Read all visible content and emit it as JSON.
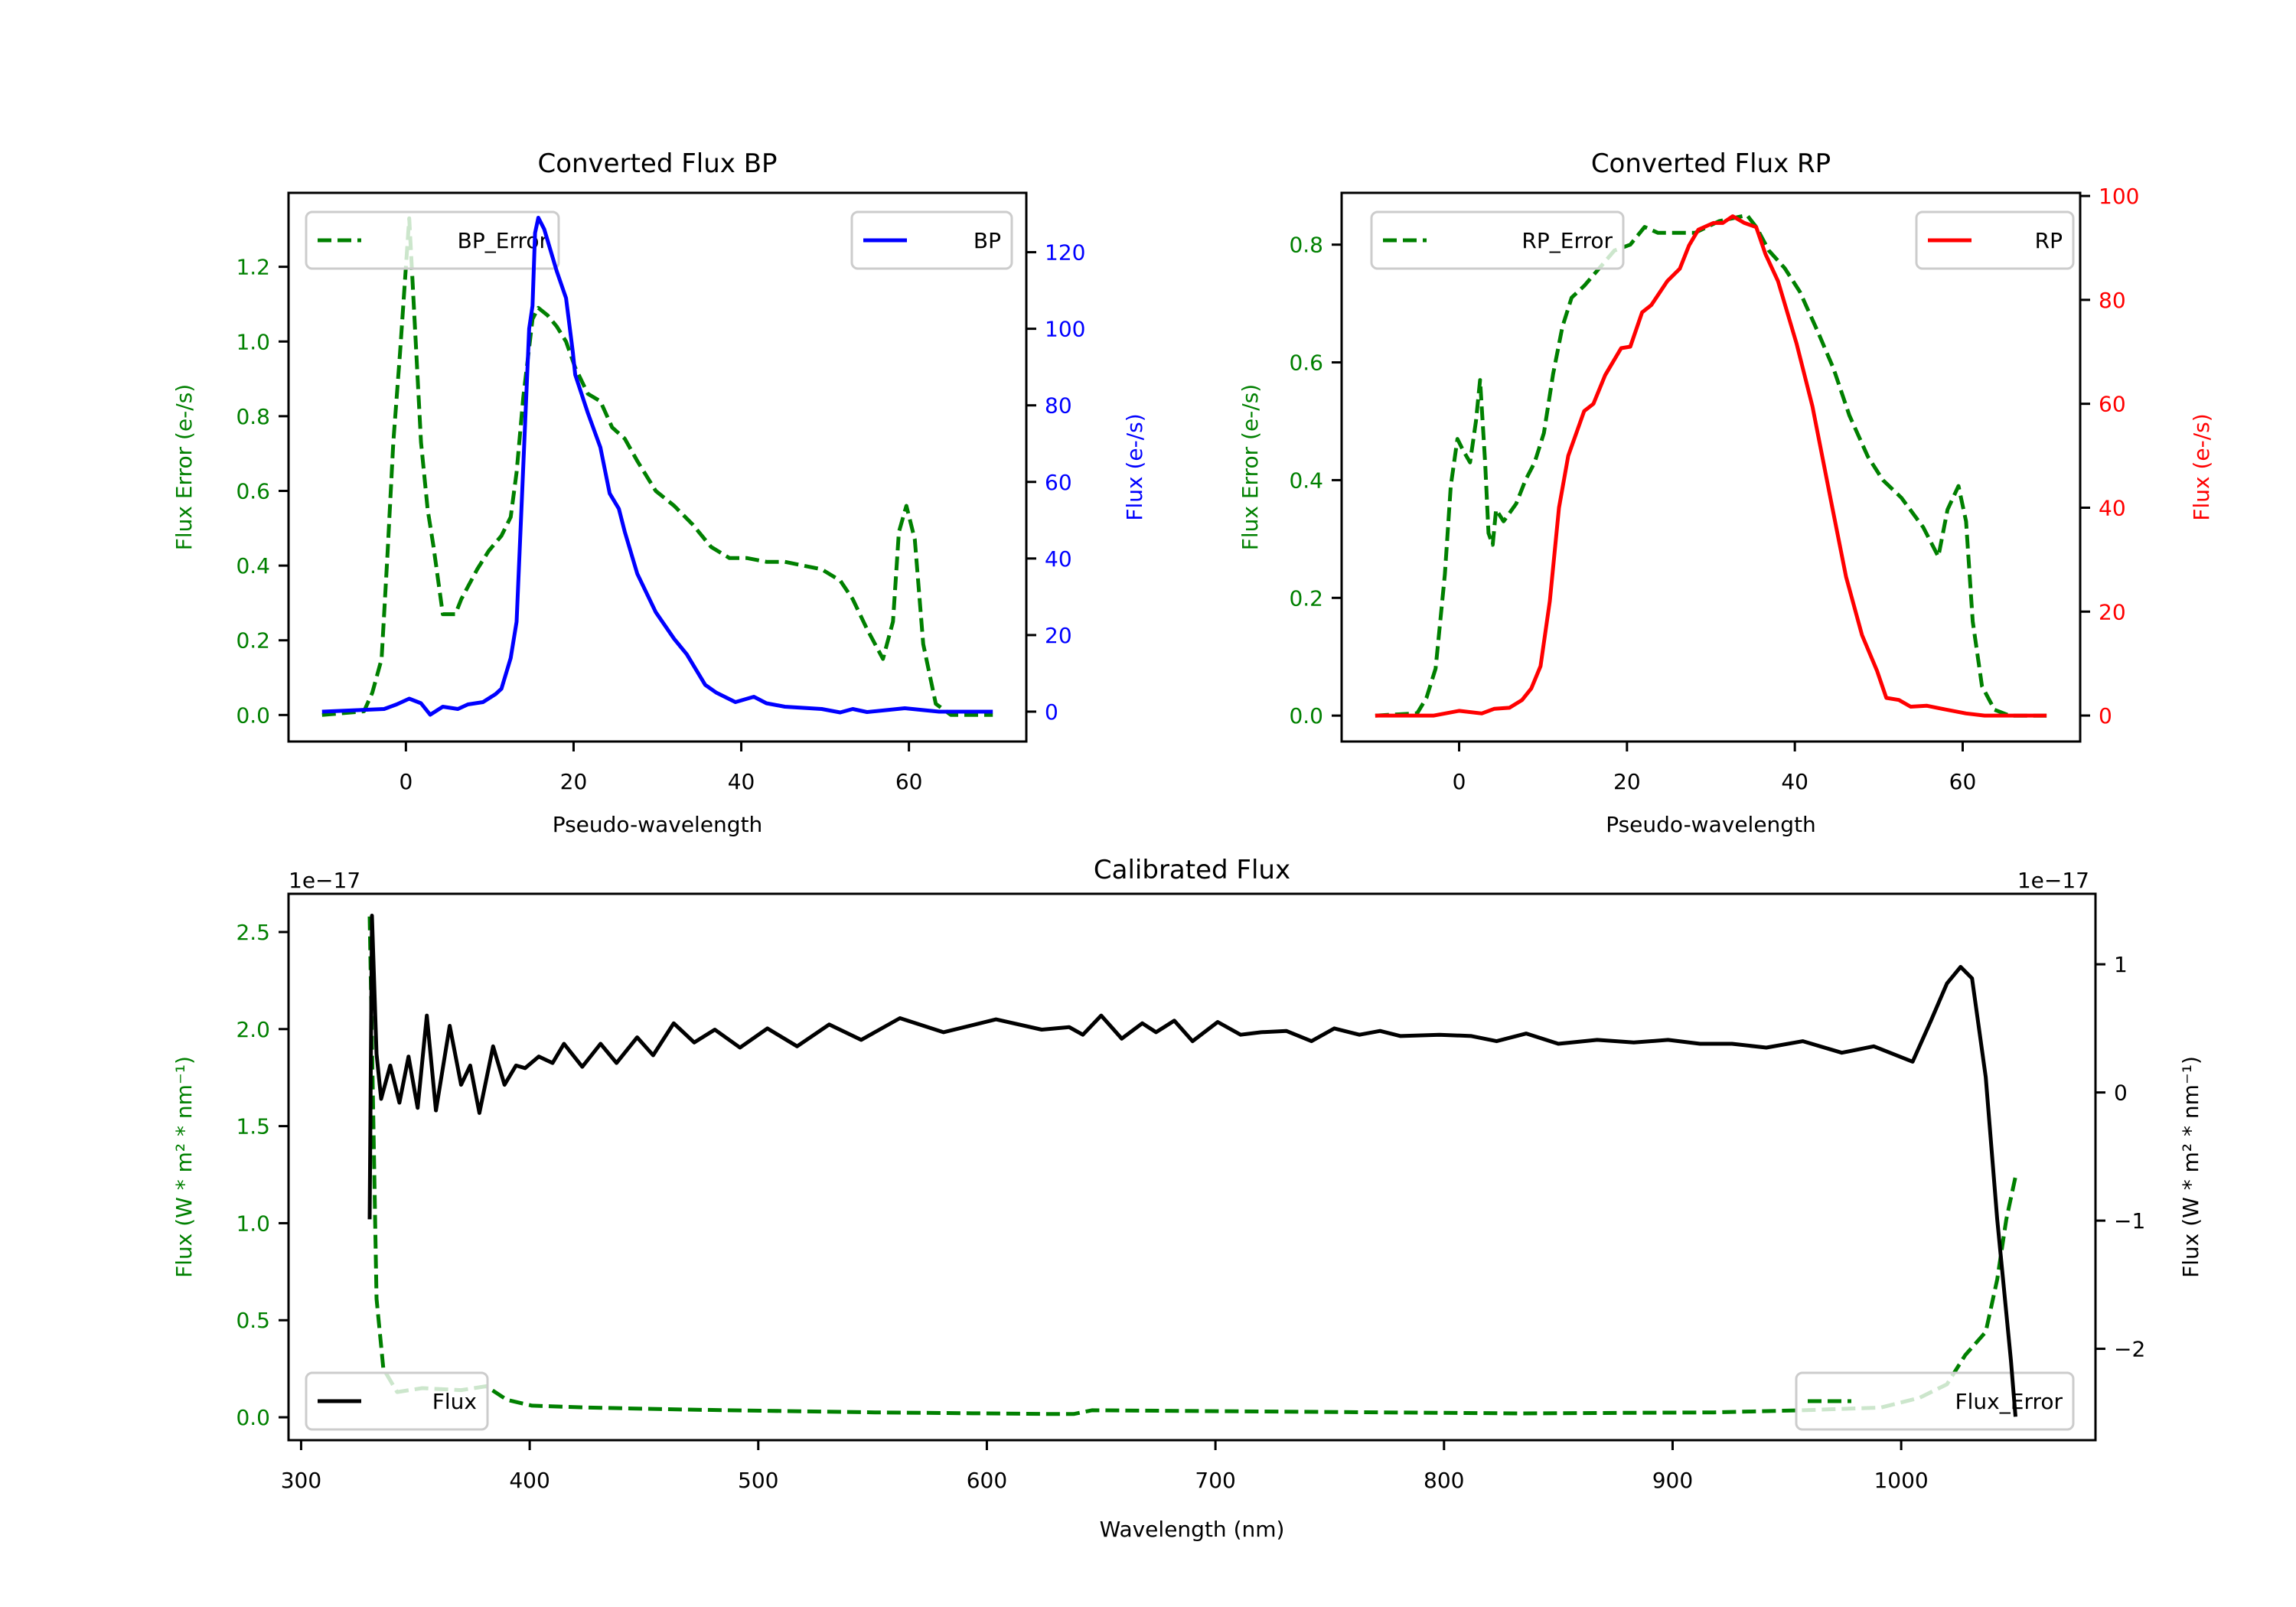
{
  "chart_data": [
    {
      "id": "bp",
      "type": "line",
      "title": "Converted Flux BP",
      "xlabel": "Pseudo-wavelength",
      "ylabel_left": "Flux Error (e-/s)",
      "ylabel_right": "Flux (e-/s)",
      "left_color": "#008000",
      "right_color": "#0000ff",
      "xlim": [
        -14,
        74
      ],
      "ylim_left": [
        -0.071,
        1.398
      ],
      "ylim_right": [
        -7.8,
        135.5
      ],
      "xticks": [
        0,
        20,
        40,
        60
      ],
      "xtick_labels": [
        "0",
        "20",
        "40",
        "60"
      ],
      "yticks_left": [
        0,
        0.2,
        0.4,
        0.6,
        0.8,
        1.0,
        1.2
      ],
      "ytick_labels_left": [
        "0.0",
        "0.2",
        "0.4",
        "0.6",
        "0.8",
        "1.0",
        "1.2"
      ],
      "yticks_right": [
        0,
        20,
        40,
        60,
        80,
        100,
        120
      ],
      "ytick_labels_right": [
        "0",
        "20",
        "40",
        "60",
        "80",
        "100",
        "120"
      ],
      "legend_left": {
        "label": "BP_Error",
        "placement": "upper-left"
      },
      "legend_right": {
        "label": "BP",
        "placement": "upper-right"
      },
      "series_left": {
        "name": "BP_Error",
        "style": "dashed",
        "color": "#008000",
        "x": [
          -10,
          -5,
          -4,
          -2.9,
          -2.2,
          -1.5,
          -0.7,
          0.4,
          1.1,
          1.8,
          2.6,
          3.3,
          4.4,
          5.9,
          6.6,
          8.5,
          9.9,
          11.4,
          12.5,
          13.2,
          14,
          15.1,
          15.8,
          16.9,
          18,
          19.1,
          20.2,
          21.7,
          23.2,
          24.6,
          26.1,
          27.6,
          29.8,
          32,
          34.2,
          36.4,
          38.6,
          40.7,
          43,
          45.2,
          47.4,
          49.6,
          51.8,
          53.3,
          55,
          56.9,
          58.1,
          58.8,
          59.7,
          60.7,
          61.7,
          63.2,
          65,
          70
        ],
        "y": [
          0,
          0.01,
          0.06,
          0.15,
          0.43,
          0.73,
          0.97,
          1.33,
          1.03,
          0.73,
          0.55,
          0.45,
          0.27,
          0.27,
          0.31,
          0.39,
          0.44,
          0.48,
          0.53,
          0.65,
          0.85,
          1.06,
          1.09,
          1.07,
          1.04,
          1.0,
          0.93,
          0.86,
          0.84,
          0.77,
          0.74,
          0.68,
          0.6,
          0.56,
          0.51,
          0.45,
          0.42,
          0.42,
          0.41,
          0.41,
          0.4,
          0.39,
          0.36,
          0.31,
          0.23,
          0.15,
          0.25,
          0.49,
          0.56,
          0.47,
          0.19,
          0.03,
          0,
          0
        ]
      },
      "series_right": {
        "name": "BP",
        "style": "solid",
        "color": "#0000ff",
        "x": [
          -10,
          -2.6,
          -1.1,
          0.4,
          1.8,
          2.9,
          4.4,
          6.2,
          7.4,
          9.2,
          10.7,
          11.4,
          12.5,
          13.2,
          14,
          14.7,
          15.1,
          15.4,
          15.8,
          16.5,
          18,
          19.1,
          19.9,
          20.2,
          21.7,
          23.2,
          24.3,
          25.4,
          26.1,
          27.6,
          29.8,
          32,
          33.5,
          35.7,
          37,
          39.3,
          41.5,
          43,
          45.2,
          49.6,
          51.8,
          53.3,
          55,
          59.5,
          63.6,
          70
        ],
        "y": [
          0,
          0.7,
          1.9,
          3.4,
          2.2,
          -0.8,
          1.3,
          0.7,
          1.9,
          2.5,
          4.6,
          6,
          14,
          23.5,
          64,
          100,
          106,
          125,
          129,
          126,
          115,
          108,
          94,
          88,
          78,
          69,
          57,
          53,
          47,
          36,
          26,
          19,
          15,
          7,
          5,
          2.5,
          3.9,
          2.2,
          1.3,
          0.7,
          -0.2,
          0.7,
          -0.1,
          0.9,
          0,
          0
        ]
      }
    },
    {
      "id": "rp",
      "type": "line",
      "title": "Converted Flux RP",
      "xlabel": "Pseudo-wavelength",
      "ylabel_left": "Flux Error (e-/s)",
      "ylabel_right": "Flux (e-/s)",
      "left_color": "#008000",
      "right_color": "#ff0000",
      "xlim": [
        -14,
        74
      ],
      "ylim_left": [
        -0.044,
        0.888
      ],
      "ylim_right": [
        -5.0,
        100.6
      ],
      "xticks": [
        0,
        20,
        40,
        60
      ],
      "xtick_labels": [
        "0",
        "20",
        "40",
        "60"
      ],
      "yticks_left": [
        0,
        0.2,
        0.4,
        0.6,
        0.8
      ],
      "ytick_labels_left": [
        "0.0",
        "0.2",
        "0.4",
        "0.6",
        "0.8"
      ],
      "yticks_right": [
        0,
        20,
        40,
        60,
        80,
        100
      ],
      "ytick_labels_right": [
        "0",
        "20",
        "40",
        "60",
        "80",
        "100"
      ],
      "legend_left": {
        "label": "RP_Error",
        "placement": "upper-left"
      },
      "legend_right": {
        "label": "RP",
        "placement": "upper-right"
      },
      "series_left": {
        "name": "RP_Error",
        "style": "dashed",
        "color": "#008000",
        "x": [
          -10,
          -5,
          -3.9,
          -2.8,
          -1.7,
          -1,
          -0.2,
          0.5,
          1.3,
          2,
          2.5,
          3.1,
          3.5,
          4,
          4.4,
          5.3,
          6.8,
          7.9,
          9,
          10.1,
          11.2,
          12.3,
          13.4,
          14.9,
          16.7,
          18.5,
          20.4,
          22.1,
          23.7,
          24.8,
          26.6,
          28.1,
          31,
          34.3,
          35.4,
          36.9,
          38.8,
          40.6,
          42.8,
          44.6,
          46.5,
          48.7,
          50.5,
          52.7,
          55.3,
          57.1,
          58.2,
          59.5,
          60.4,
          61.2,
          62.3,
          63.8,
          65.6,
          70
        ],
        "y": [
          0,
          0.004,
          0.03,
          0.08,
          0.24,
          0.39,
          0.47,
          0.45,
          0.43,
          0.5,
          0.57,
          0.43,
          0.31,
          0.29,
          0.35,
          0.33,
          0.36,
          0.4,
          0.43,
          0.48,
          0.58,
          0.66,
          0.71,
          0.73,
          0.76,
          0.79,
          0.8,
          0.83,
          0.82,
          0.82,
          0.82,
          0.82,
          0.84,
          0.85,
          0.83,
          0.79,
          0.76,
          0.72,
          0.65,
          0.59,
          0.51,
          0.44,
          0.4,
          0.37,
          0.32,
          0.27,
          0.35,
          0.39,
          0.33,
          0.16,
          0.05,
          0.01,
          0,
          0
        ]
      },
      "series_right": {
        "name": "RP",
        "style": "solid",
        "color": "#ff0000",
        "x": [
          -10,
          -3,
          0,
          2.7,
          4.2,
          6,
          7.5,
          8.6,
          9.7,
          10.8,
          11.9,
          13,
          14.9,
          16,
          17.4,
          19.3,
          20.4,
          21.8,
          22.9,
          24.8,
          26.3,
          27.4,
          28.5,
          30.3,
          31.4,
          32.6,
          34,
          35.4,
          36.5,
          38,
          40.2,
          42.1,
          44.3,
          46.1,
          48,
          49.8,
          50.9,
          52.4,
          53.8,
          55.7,
          57.5,
          60.4,
          62.6,
          70
        ],
        "y": [
          0,
          0,
          0.9,
          0.4,
          1.3,
          1.5,
          3,
          5.2,
          9.5,
          22,
          40,
          50,
          58.6,
          60,
          65.5,
          70.7,
          71,
          77.6,
          79,
          83.6,
          86,
          90.5,
          93.5,
          94.8,
          94.8,
          96.1,
          94.8,
          94,
          88.8,
          83.6,
          71.6,
          59.5,
          41.4,
          26.7,
          15.5,
          8.6,
          3.4,
          3,
          1.7,
          1.9,
          1.3,
          0.4,
          0,
          0
        ]
      }
    },
    {
      "id": "cal",
      "type": "line",
      "title": "Calibrated Flux",
      "xlabel": "Wavelength (nm)",
      "ylabel_left": "Flux (W * m² * nm⁻¹)",
      "ylabel_right": "Flux (W * m² * nm⁻¹)",
      "left_color": "#008000",
      "right_color": "#000000",
      "offset_left": "1e−17",
      "offset_right": "1e−17",
      "xlim": [
        294.5,
        1085
      ],
      "ylim_left": [
        -0.118,
        2.697
      ],
      "ylim_right": [
        -2.713,
        1.55
      ],
      "xticks": [
        300,
        400,
        500,
        600,
        700,
        800,
        900,
        1000
      ],
      "xtick_labels": [
        "300",
        "400",
        "500",
        "600",
        "700",
        "800",
        "900",
        "1000"
      ],
      "yticks_left": [
        0,
        0.5,
        1.0,
        1.5,
        2.0,
        2.5
      ],
      "ytick_labels_left": [
        "0.0",
        "0.5",
        "1.0",
        "1.5",
        "2.0",
        "2.5"
      ],
      "yticks_right": [
        -2,
        -1,
        0,
        1
      ],
      "ytick_labels_right": [
        "−2",
        "−1",
        "0",
        "1"
      ],
      "legend_left": {
        "label": "Flux_Error",
        "placement": "lower-right"
      },
      "legend_right": {
        "label": "Flux",
        "placement": "lower-left"
      },
      "series_left": {
        "name": "Flux_Error",
        "style": "dashed",
        "color": "#008000",
        "x": [
          330,
          332,
          333,
          336,
          342,
          353,
          370,
          381,
          390,
          401,
          426,
          466,
          551,
          630,
          638,
          646,
          720,
          833,
          918,
          957,
          991,
          1008,
          1020,
          1028,
          1037,
          1042,
          1046,
          1050
        ],
        "y": [
          2.58,
          1.27,
          0.61,
          0.25,
          0.13,
          0.15,
          0.14,
          0.16,
          0.09,
          0.06,
          0.05,
          0.04,
          0.025,
          0.017,
          0.017,
          0.036,
          0.03,
          0.02,
          0.025,
          0.036,
          0.05,
          0.1,
          0.17,
          0.32,
          0.44,
          0.71,
          1.02,
          1.24
        ]
      },
      "series_right": {
        "name": "Flux",
        "style": "solid",
        "color": "#000000",
        "x": [
          330,
          331,
          333,
          335,
          339,
          343,
          347,
          351,
          355,
          359,
          365,
          370,
          374,
          378,
          384,
          389,
          394,
          398,
          404,
          410,
          415,
          423,
          431,
          438,
          447,
          454,
          463,
          472,
          481,
          492,
          504,
          517,
          531,
          545,
          562,
          581,
          604,
          624,
          636,
          642,
          650,
          659,
          668,
          674,
          682,
          690,
          701,
          711,
          720,
          731,
          742,
          752,
          763,
          772,
          781,
          798,
          812,
          823,
          836,
          850,
          867,
          883,
          898,
          912,
          926,
          941,
          957,
          974,
          988,
          1005,
          1013,
          1020,
          1026,
          1031,
          1037,
          1042,
          1048,
          1050
        ],
        "y": [
          -0.99,
          1.38,
          0.3,
          -0.05,
          0.21,
          -0.08,
          0.28,
          -0.12,
          0.6,
          -0.14,
          0.52,
          0.06,
          0.21,
          -0.16,
          0.36,
          0.06,
          0.21,
          0.19,
          0.28,
          0.23,
          0.38,
          0.2,
          0.38,
          0.23,
          0.43,
          0.29,
          0.54,
          0.39,
          0.49,
          0.35,
          0.5,
          0.36,
          0.53,
          0.41,
          0.58,
          0.47,
          0.57,
          0.49,
          0.51,
          0.45,
          0.6,
          0.42,
          0.54,
          0.47,
          0.56,
          0.4,
          0.55,
          0.45,
          0.47,
          0.48,
          0.4,
          0.5,
          0.45,
          0.48,
          0.44,
          0.45,
          0.44,
          0.4,
          0.46,
          0.38,
          0.41,
          0.39,
          0.41,
          0.38,
          0.38,
          0.35,
          0.4,
          0.31,
          0.36,
          0.24,
          0.56,
          0.85,
          0.98,
          0.89,
          0.12,
          -0.99,
          -2.09,
          -2.53
        ]
      }
    }
  ]
}
